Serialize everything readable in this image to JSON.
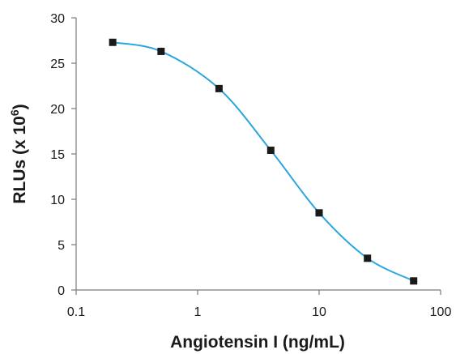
{
  "chart_data": {
    "type": "scatter",
    "title": "",
    "xlabel": "Angiotensin I (ng/mL)",
    "ylabel_main": "RLUs (x 10",
    "ylabel_sup": "6",
    "ylabel_close": ")",
    "x_scale": "log",
    "xlim": [
      0.1,
      100
    ],
    "ylim": [
      0,
      30
    ],
    "x_ticks": [
      0.1,
      1,
      10,
      100
    ],
    "x_tick_labels": [
      "0.1",
      "1",
      "10",
      "100"
    ],
    "y_ticks": [
      0,
      5,
      10,
      15,
      20,
      25,
      30
    ],
    "y_tick_labels": [
      "0",
      "5",
      "10",
      "15",
      "20",
      "25",
      "30"
    ],
    "grid": false,
    "series": [
      {
        "x": [
          0.2,
          0.5,
          1.5,
          4,
          10,
          25,
          60
        ],
        "y": [
          27.3,
          26.3,
          22.2,
          15.4,
          8.5,
          3.5,
          1.0
        ],
        "marker": "square",
        "marker_color": "#1a1a1a",
        "line_color": "#2aa7e0",
        "line": "smooth"
      }
    ]
  }
}
